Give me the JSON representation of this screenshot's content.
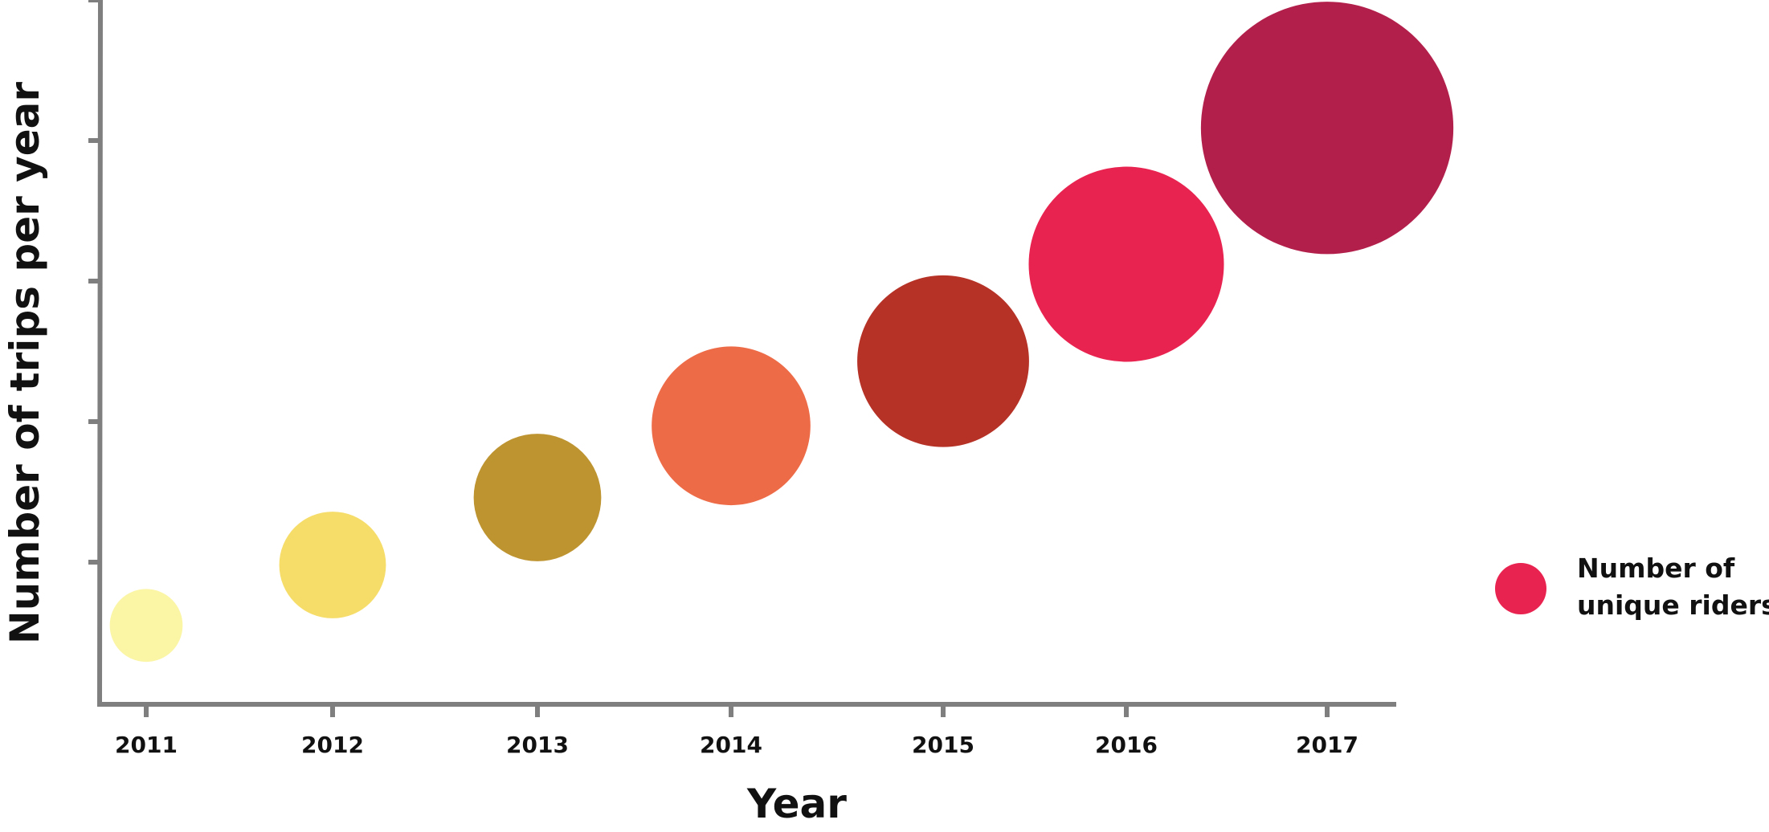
{
  "chart_data": {
    "type": "scatter",
    "title": "",
    "xlabel": "Year",
    "ylabel": "Number of trips per year",
    "categories": [
      "2011",
      "2012",
      "2013",
      "2014",
      "2015",
      "2016",
      "2017"
    ],
    "ylim": [
      0,
      5
    ],
    "y_ticks_labeled": false,
    "grid": false,
    "series": [
      {
        "name": "Number of unique riders",
        "points": [
          {
            "x": "2011",
            "y": 0.55,
            "size": 0.28,
            "color": "#fbf5a6"
          },
          {
            "x": "2012",
            "y": 0.98,
            "size": 0.41,
            "color": "#f6dd6a"
          },
          {
            "x": "2013",
            "y": 1.46,
            "size": 0.49,
            "color": "#be9431"
          },
          {
            "x": "2014",
            "y": 1.97,
            "size": 0.61,
            "color": "#ee6b48"
          },
          {
            "x": "2015",
            "y": 2.43,
            "size": 0.66,
            "color": "#b63126"
          },
          {
            "x": "2016",
            "y": 3.12,
            "size": 0.75,
            "color": "#e92350"
          },
          {
            "x": "2017",
            "y": 4.09,
            "size": 0.97,
            "color": "#b31f4b"
          }
        ]
      }
    ],
    "legend": {
      "placement": "right",
      "label_line1": "Number of",
      "label_line2": "unique riders",
      "color": "#e92350"
    }
  }
}
